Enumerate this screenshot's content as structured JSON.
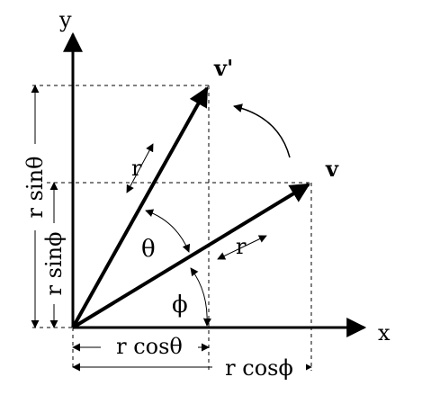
{
  "axes": {
    "x_label": "x",
    "y_label": "y"
  },
  "vectors": {
    "v_label": "v",
    "v_prime_label": "v'",
    "r_label_v": "r",
    "r_label_v_prime": "r"
  },
  "angles": {
    "theta_label": "θ",
    "phi_label": "ϕ"
  },
  "projections": {
    "r_cos_theta": "r cosθ",
    "r_cos_phi": "r cosϕ",
    "r_sin_theta": "r sinθ",
    "r_sin_phi": "r sinϕ"
  }
}
